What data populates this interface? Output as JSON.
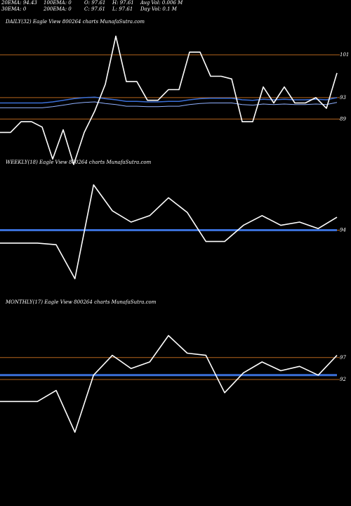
{
  "header": {
    "row1": [
      "20EMA: 94.43",
      "100EMA: 0",
      "O: 97.61",
      "H: 97.61",
      "Avg Vol: 0.006  M"
    ],
    "row2": [
      "30EMA: 0",
      "200EMA: 0",
      "C: 97.61",
      "L: 97.61",
      "Day Vol: 0.1  M"
    ]
  },
  "colors": {
    "background": "#000000",
    "price": "#ffffff",
    "ema": "#3a6fd8",
    "level": "#b5651d"
  },
  "chart_data": [
    {
      "type": "line",
      "title": "DAILY(32) Eagle  View  800264  charts MunafaSutra.com",
      "levels": [
        {
          "label": "101",
          "value": 101
        },
        {
          "label": "93",
          "value": 93
        },
        {
          "label": "89",
          "value": 89
        }
      ],
      "ylim": [
        83,
        106
      ],
      "series": [
        {
          "values": [
            86.5,
            86.5,
            88.5,
            88.5,
            87.5,
            81.5,
            87,
            80.5,
            86.5,
            90.5,
            95.5,
            104.5,
            96,
            96,
            92.5,
            92.5,
            94.5,
            94.5,
            101.5,
            101.5,
            97,
            97,
            96.5,
            88.5,
            88.5,
            95,
            92,
            95,
            92,
            92,
            93,
            91,
            97.6
          ]
        },
        {
          "values": [
            92,
            92,
            92,
            92,
            92,
            92.2,
            92.5,
            92.8,
            93,
            93.1,
            92.8,
            92.6,
            92.3,
            92.3,
            92.2,
            92.2,
            92.3,
            92.3,
            92.6,
            92.8,
            92.9,
            92.9,
            92.9,
            92.6,
            92.5,
            92.7,
            92.6,
            92.7,
            92.6,
            92.6,
            92.7,
            92.6,
            93
          ]
        }
      ]
    },
    {
      "type": "line",
      "title": "WEEKLY(18) Eagle  View  800264  charts MunafaSutra.com",
      "levels": [
        {
          "label": "94",
          "value": 94
        }
      ],
      "ylim": [
        75,
        113
      ],
      "series": [
        {
          "values": [
            90,
            90,
            90,
            89.5,
            79,
            108,
            100,
            96.5,
            98.5,
            104,
            99.5,
            90.5,
            90.5,
            95.5,
            98.5,
            95.5,
            96.5,
            94.5,
            98
          ]
        },
        {
          "values": [
            94,
            94,
            94,
            94,
            94,
            94,
            94,
            94,
            94,
            94,
            94,
            94,
            94,
            94,
            94,
            94,
            94,
            94,
            94
          ]
        }
      ]
    },
    {
      "type": "line",
      "title": "MONTHLY(17) Eagle  View  800264  charts MunafaSutra.com",
      "levels": [
        {
          "label": "97",
          "value": 97
        },
        {
          "label": "92",
          "value": 92
        }
      ],
      "ylim": [
        76,
        108
      ],
      "series": [
        {
          "values": [
            87,
            87,
            87,
            89.5,
            80,
            93,
            97.5,
            94.5,
            96,
            102,
            98,
            97.5,
            89,
            93.5,
            96,
            94,
            95,
            93,
            97.5
          ]
        },
        {
          "values": [
            93,
            93,
            93,
            93,
            93,
            93,
            93,
            93,
            93,
            93,
            93,
            93,
            93,
            93,
            93,
            93,
            93,
            93,
            93
          ]
        }
      ]
    }
  ]
}
